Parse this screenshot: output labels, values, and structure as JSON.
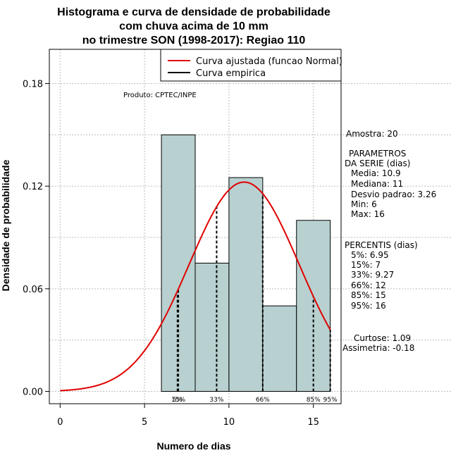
{
  "chart_data": {
    "type": "bar",
    "title_lines": [
      "Histograma e curva de densidade de probabilidade",
      "com chuva acima de 10 mm",
      "no trimestre SON (1998-2017): Regiao 110"
    ],
    "xlabel": "Numero de dias",
    "ylabel": "Densidade de probabilidade",
    "xlim": [
      -0.64,
      16.64
    ],
    "ylim": [
      -0.0072,
      0.2
    ],
    "x_ticks": [
      0,
      5,
      10,
      15
    ],
    "y_ticks": [
      0.0,
      0.06,
      0.12,
      0.18
    ],
    "y_tick_labels": [
      "0.00",
      "0.06",
      "0.12",
      "0.18"
    ],
    "grid": true,
    "legend_position": "top-right",
    "histogram": {
      "bins": [
        [
          6,
          8
        ],
        [
          8,
          10
        ],
        [
          10,
          12
        ],
        [
          12,
          14
        ],
        [
          14,
          16
        ]
      ],
      "densities": [
        0.15,
        0.075,
        0.125,
        0.05,
        0.1
      ],
      "color": "#b8d0d0",
      "edge_color": "#000000"
    },
    "normal_curve": {
      "name": "Curva ajustada (funcao Normal)",
      "mean": 10.9,
      "sd": 3.26,
      "x_range": [
        0,
        16
      ],
      "color": "#e00000"
    },
    "empirical_curve": {
      "name": "Curva empirica",
      "color": "#000000"
    },
    "percentile_lines": [
      {
        "label": "5%",
        "x": 6.95
      },
      {
        "label": "15%",
        "x": 7
      },
      {
        "label": "33%",
        "x": 9.27
      },
      {
        "label": "66%",
        "x": 12
      },
      {
        "label": "85%",
        "x": 15
      },
      {
        "label": "95%",
        "x": 16
      }
    ],
    "annotation": "Produto: CPTEC/INPE",
    "side_panel": {
      "amostra": "Amostra: 20",
      "parametros_title_1": "PARAMETROS",
      "parametros_title_2": "DA SERIE (dias)",
      "params": [
        "Media: 10.9",
        "Mediana: 11",
        "Desvio padrao: 3.26",
        "Min: 6",
        "Max: 16"
      ],
      "percentis_title": "PERCENTIS (dias)",
      "percentis": [
        "5%: 6.95",
        "15%: 7",
        "33%: 9.27",
        "66%: 12",
        "85%: 15",
        "95%: 16"
      ],
      "curtose": "Curtose: 1.09",
      "assimetria": "Assimetria: -0.18"
    }
  }
}
